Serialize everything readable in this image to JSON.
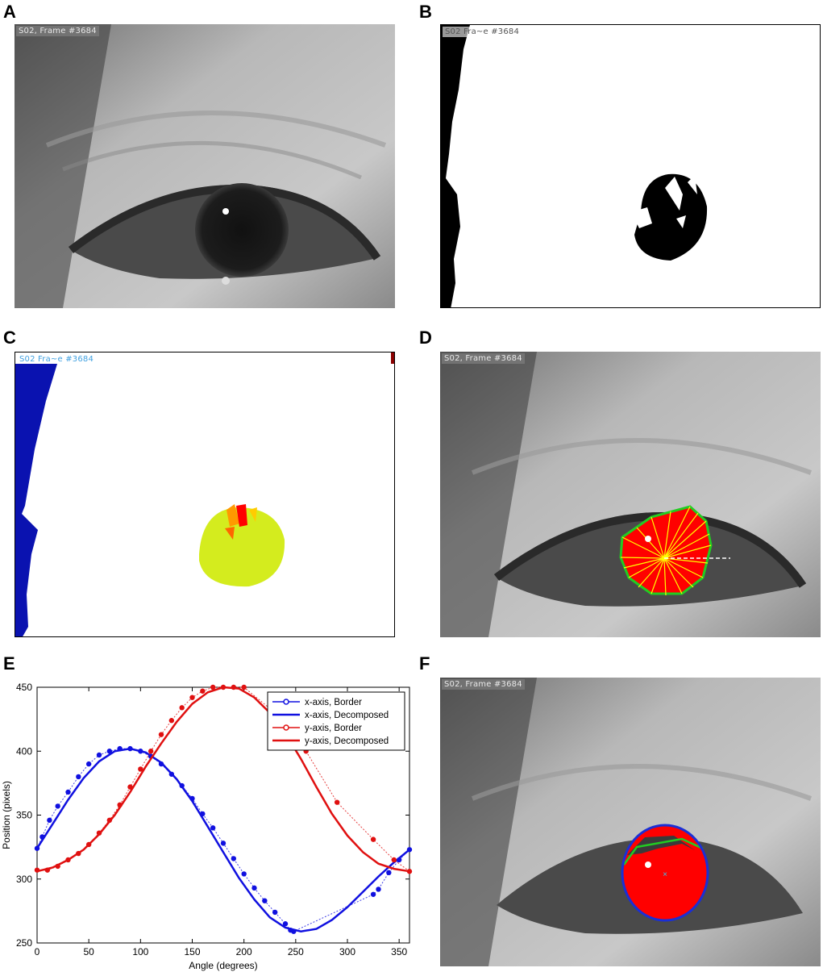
{
  "panels": {
    "A": {
      "label": "A",
      "caption": "S02, Frame #3684"
    },
    "B": {
      "label": "B",
      "caption": "S02  Fra~e #3684"
    },
    "C": {
      "label": "C",
      "caption": "S02  Fra~e #3684"
    },
    "D": {
      "label": "D",
      "caption": "S02, Frame #3684"
    },
    "E": {
      "label": "E"
    },
    "F": {
      "label": "F",
      "caption": "S02, Frame #3684"
    }
  },
  "colors": {
    "pupil_fill": "#ff0000",
    "hull": "#22cc22",
    "rays": "#ffff00",
    "ellipse": "#1a2fd6",
    "blob_blue": "#0a12b0",
    "blob_lime": "#d4ec1e",
    "x_series": "#1010e0",
    "y_series": "#e01010"
  },
  "chart_data": {
    "type": "line",
    "xlabel": "Angle (degrees)",
    "ylabel": "Position (pixels)",
    "xlim": [
      0,
      360
    ],
    "ylim": [
      250,
      450
    ],
    "xticks": [
      0,
      50,
      100,
      150,
      200,
      250,
      300,
      350
    ],
    "yticks": [
      250,
      300,
      350,
      400,
      450
    ],
    "legend_position": "top-right",
    "series": [
      {
        "name": "x-axis, Border",
        "style": "dotted-markers",
        "color": "#1010e0",
        "x": [
          0,
          5,
          12,
          20,
          30,
          40,
          50,
          60,
          70,
          80,
          90,
          100,
          110,
          120,
          130,
          140,
          150,
          160,
          170,
          180,
          190,
          200,
          210,
          220,
          230,
          240,
          245,
          248,
          325,
          330,
          340,
          350,
          360
        ],
        "y": [
          324,
          333,
          346,
          357,
          368,
          380,
          390,
          397,
          400,
          402,
          402,
          400,
          396,
          390,
          382,
          373,
          363,
          351,
          340,
          328,
          316,
          304,
          293,
          283,
          274,
          265,
          260,
          259,
          288,
          292,
          305,
          315,
          323
        ]
      },
      {
        "name": "x-axis, Decomposed",
        "style": "solid",
        "color": "#1010e0",
        "x": [
          0,
          15,
          30,
          45,
          60,
          75,
          90,
          105,
          120,
          135,
          150,
          165,
          180,
          195,
          210,
          225,
          240,
          255,
          270,
          285,
          300,
          315,
          330,
          345,
          360
        ],
        "y": [
          324,
          343,
          362,
          379,
          392,
          400,
          402,
          399,
          391,
          378,
          361,
          341,
          321,
          301,
          284,
          270,
          262,
          259,
          261,
          268,
          278,
          290,
          302,
          313,
          323
        ]
      },
      {
        "name": "y-axis, Border",
        "style": "dotted-markers",
        "color": "#e01010",
        "x": [
          0,
          10,
          20,
          30,
          40,
          50,
          60,
          70,
          80,
          90,
          100,
          110,
          120,
          130,
          140,
          150,
          160,
          170,
          180,
          190,
          200,
          230,
          260,
          290,
          325,
          345,
          360
        ],
        "y": [
          307,
          307,
          310,
          315,
          320,
          327,
          336,
          346,
          358,
          372,
          386,
          400,
          413,
          424,
          434,
          442,
          447,
          450,
          450,
          450,
          450,
          430,
          400,
          360,
          331,
          315,
          306
        ]
      },
      {
        "name": "y-axis, Decomposed",
        "style": "solid",
        "color": "#e01010",
        "x": [
          0,
          15,
          30,
          45,
          60,
          75,
          90,
          105,
          120,
          135,
          150,
          165,
          180,
          195,
          210,
          225,
          240,
          255,
          270,
          285,
          300,
          315,
          330,
          345,
          360
        ],
        "y": [
          306,
          309,
          315,
          323,
          335,
          350,
          368,
          388,
          406,
          423,
          437,
          446,
          450,
          449,
          442,
          430,
          414,
          394,
          372,
          351,
          334,
          321,
          312,
          308,
          306
        ]
      }
    ]
  }
}
